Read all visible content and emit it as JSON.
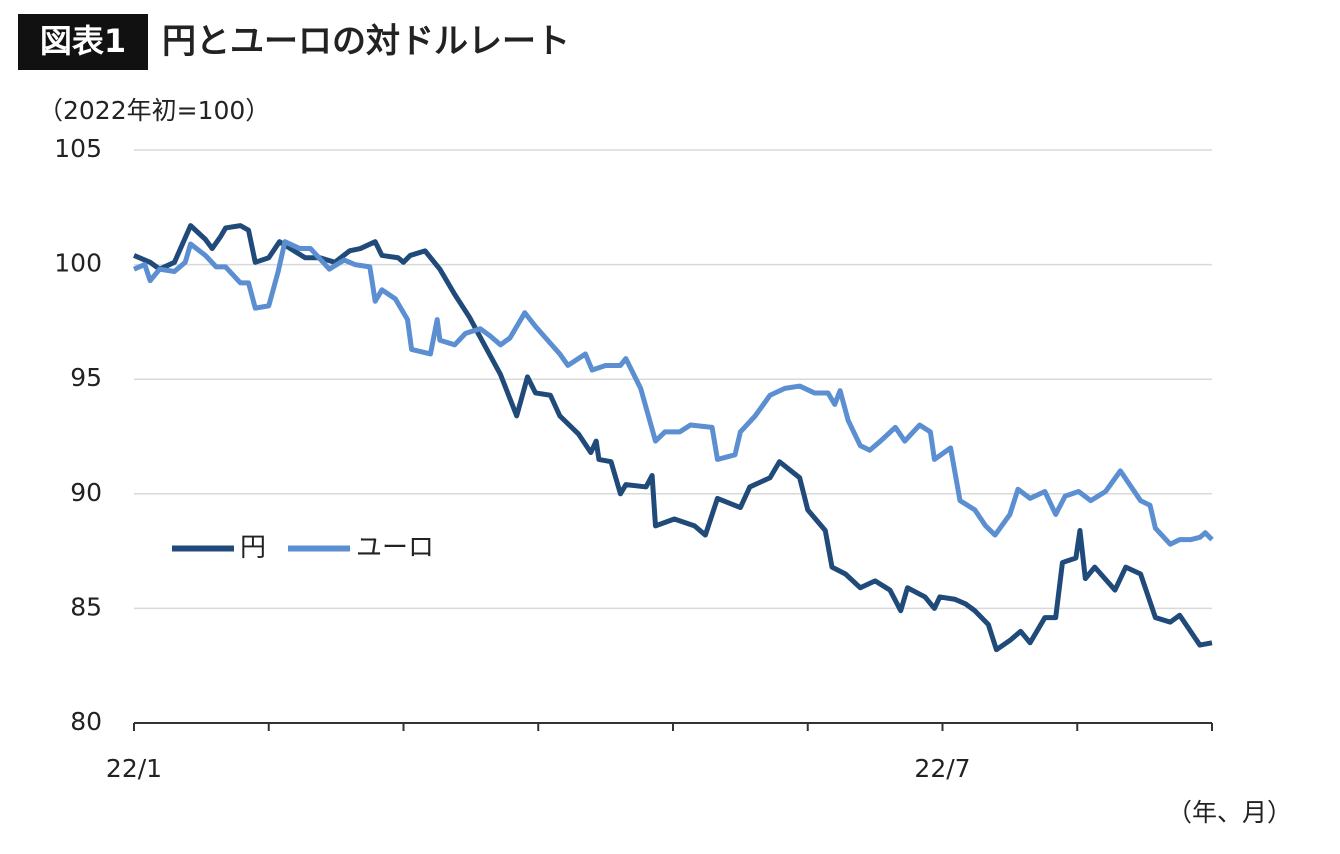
{
  "chart_data": {
    "type": "line",
    "figure_label": "図表1",
    "title": "円とユーロの対ドルレート",
    "y_label": "（2022年初=100）",
    "x_label": "（年、月）",
    "xlim": [
      0,
      8
    ],
    "xticks": [
      {
        "value": 0,
        "label": "22/1"
      },
      {
        "value": 1,
        "label": null
      },
      {
        "value": 2,
        "label": null
      },
      {
        "value": 3,
        "label": null
      },
      {
        "value": 4,
        "label": null
      },
      {
        "value": 5,
        "label": null
      },
      {
        "value": 6,
        "label": "22/7"
      },
      {
        "value": 7,
        "label": null
      },
      {
        "value": 8,
        "label": null
      }
    ],
    "ylim": [
      80,
      105
    ],
    "yticks": [
      80,
      85,
      90,
      95,
      100,
      105
    ],
    "grid": true,
    "legend": "center left",
    "series": [
      {
        "name": "円",
        "color": "#1f4a7a",
        "x": [
          0,
          0.12,
          0.19,
          0.3,
          0.42,
          0.53,
          0.58,
          0.64,
          0.68,
          0.79,
          0.85,
          0.9,
          1.0,
          1.08,
          1.16,
          1.27,
          1.38,
          1.49,
          1.6,
          1.68,
          1.79,
          1.84,
          1.96,
          2.0,
          2.05,
          2.16,
          2.27,
          2.38,
          2.49,
          2.6,
          2.72,
          2.84,
          2.92,
          2.98,
          3.09,
          3.16,
          3.3,
          3.39,
          3.43,
          3.45,
          3.54,
          3.61,
          3.65,
          3.8,
          3.845,
          3.87,
          4.01,
          4.16,
          4.24,
          4.33,
          4.5,
          4.57,
          4.72,
          4.79,
          4.94,
          5.0,
          5.13,
          5.18,
          5.28,
          5.39,
          5.5,
          5.61,
          5.69,
          5.74,
          5.87,
          5.94,
          5.98,
          6.09,
          6.17,
          6.24,
          6.34,
          6.4,
          6.5,
          6.58,
          6.65,
          6.76,
          6.84,
          6.89,
          6.99,
          7.02,
          7.06,
          7.13,
          7.28,
          7.36,
          7.47,
          7.58,
          7.69,
          7.76,
          7.91,
          8.0
        ],
        "values": [
          100.4,
          100.1,
          99.8,
          100.1,
          101.7,
          101.1,
          100.7,
          101.2,
          101.6,
          101.7,
          101.5,
          100.1,
          100.3,
          101.0,
          100.7,
          100.3,
          100.3,
          100.1,
          100.6,
          100.7,
          101.0,
          100.4,
          100.3,
          100.1,
          100.4,
          100.6,
          99.8,
          98.7,
          97.7,
          96.5,
          95.2,
          93.4,
          95.1,
          94.4,
          94.3,
          93.4,
          92.6,
          91.8,
          92.3,
          91.5,
          91.4,
          90.0,
          90.4,
          90.3,
          90.8,
          88.6,
          88.9,
          88.6,
          88.2,
          89.8,
          89.4,
          90.3,
          90.7,
          91.4,
          90.7,
          89.3,
          88.4,
          86.8,
          86.5,
          85.9,
          86.2,
          85.8,
          84.9,
          85.9,
          85.5,
          85.0,
          85.5,
          85.4,
          85.2,
          84.9,
          84.3,
          83.2,
          83.6,
          84.0,
          83.5,
          84.6,
          84.6,
          87.0,
          87.2,
          88.4,
          86.3,
          86.8,
          85.8,
          86.8,
          86.5,
          84.6,
          84.4,
          84.7,
          83.4,
          83.5
        ]
      },
      {
        "name": "ユーロ",
        "color": "#5b8fd1",
        "x": [
          0,
          0.08,
          0.12,
          0.19,
          0.3,
          0.38,
          0.42,
          0.53,
          0.61,
          0.68,
          0.79,
          0.85,
          0.9,
          1.0,
          1.07,
          1.12,
          1.23,
          1.31,
          1.45,
          1.56,
          1.64,
          1.75,
          1.79,
          1.84,
          1.94,
          2.03,
          2.06,
          2.2,
          2.25,
          2.27,
          2.38,
          2.46,
          2.57,
          2.64,
          2.72,
          2.79,
          2.9,
          2.98,
          3.07,
          3.16,
          3.22,
          3.35,
          3.4,
          3.5,
          3.61,
          3.65,
          3.76,
          3.87,
          3.94,
          4.05,
          4.13,
          4.29,
          4.33,
          4.46,
          4.5,
          4.61,
          4.72,
          4.83,
          4.94,
          5.05,
          5.15,
          5.2,
          5.24,
          5.3,
          5.39,
          5.46,
          5.54,
          5.65,
          5.72,
          5.83,
          5.91,
          5.94,
          6.06,
          6.13,
          6.24,
          6.32,
          6.39,
          6.5,
          6.56,
          6.65,
          6.76,
          6.84,
          6.91,
          7.01,
          7.1,
          7.21,
          7.32,
          7.47,
          7.54,
          7.58,
          7.69,
          7.76,
          7.84,
          7.91,
          7.95,
          8.0
        ],
        "values": [
          99.8,
          100.0,
          99.3,
          99.8,
          99.7,
          100.1,
          100.9,
          100.4,
          99.9,
          99.9,
          99.2,
          99.2,
          98.1,
          98.2,
          99.7,
          101.0,
          100.7,
          100.7,
          99.8,
          100.2,
          100.0,
          99.9,
          98.4,
          98.9,
          98.5,
          97.6,
          96.3,
          96.1,
          97.6,
          96.7,
          96.5,
          97.0,
          97.2,
          96.9,
          96.5,
          96.8,
          97.9,
          97.3,
          96.7,
          96.1,
          95.6,
          96.1,
          95.4,
          95.6,
          95.6,
          95.9,
          94.6,
          92.3,
          92.7,
          92.7,
          93.0,
          92.9,
          91.5,
          91.7,
          92.7,
          93.4,
          94.3,
          94.6,
          94.7,
          94.4,
          94.4,
          93.9,
          94.5,
          93.2,
          92.1,
          91.9,
          92.3,
          92.9,
          92.3,
          93.0,
          92.7,
          91.5,
          92.0,
          89.7,
          89.3,
          88.6,
          88.2,
          89.1,
          90.2,
          89.8,
          90.1,
          89.1,
          89.9,
          90.1,
          89.7,
          90.1,
          91.0,
          89.7,
          89.5,
          88.5,
          87.8,
          88.0,
          88.0,
          88.1,
          88.3,
          88.0
        ]
      }
    ]
  }
}
